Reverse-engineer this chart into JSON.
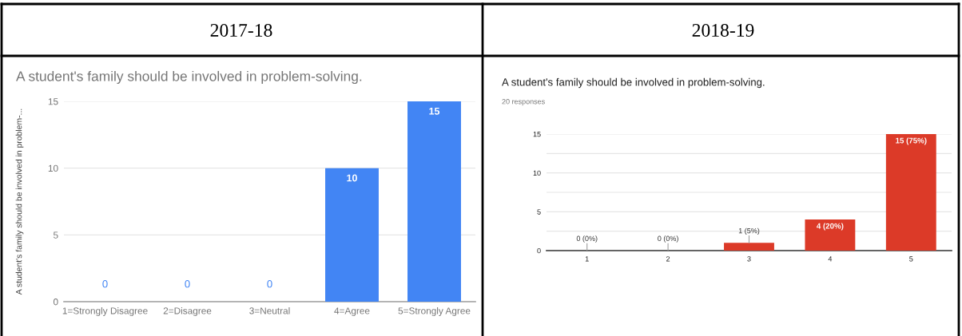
{
  "chart_data": [
    {
      "type": "bar",
      "annotations": [
        "2017-18"
      ],
      "title": "A student's family should be involved in problem-solving.",
      "ylabel": "A student's family should be involved in problem-...",
      "categories": [
        "1=Strongly Disagree",
        "2=Disagree",
        "3=Neutral",
        "4=Agree",
        "5=Strongly Agree"
      ],
      "values": [
        0,
        0,
        0,
        10,
        15
      ],
      "color": "#4285f4",
      "data_labels": true,
      "ylim": [
        0,
        15
      ],
      "yticks": [
        0,
        5,
        10,
        15
      ],
      "grid": "y"
    },
    {
      "type": "bar",
      "annotations": [
        "2018-19"
      ],
      "title": "A student's family should be involved in problem-solving.",
      "subtitle": "20 responses",
      "categories": [
        "1",
        "2",
        "3",
        "4",
        "5"
      ],
      "values": [
        0,
        0,
        1,
        4,
        15
      ],
      "color": "#dc3a28",
      "value_labels": [
        "0 (0%)",
        "0 (0%)",
        "1 (5%)",
        "4 (20%)",
        "15 (75%)"
      ],
      "ylim": [
        0,
        15
      ],
      "yticks": [
        0,
        {
          "value": 2.5,
          "label": null
        },
        5,
        {
          "value": 7.5,
          "label": null
        },
        10,
        {
          "value": 12.5,
          "label": null
        },
        15
      ],
      "grid": "y"
    }
  ]
}
